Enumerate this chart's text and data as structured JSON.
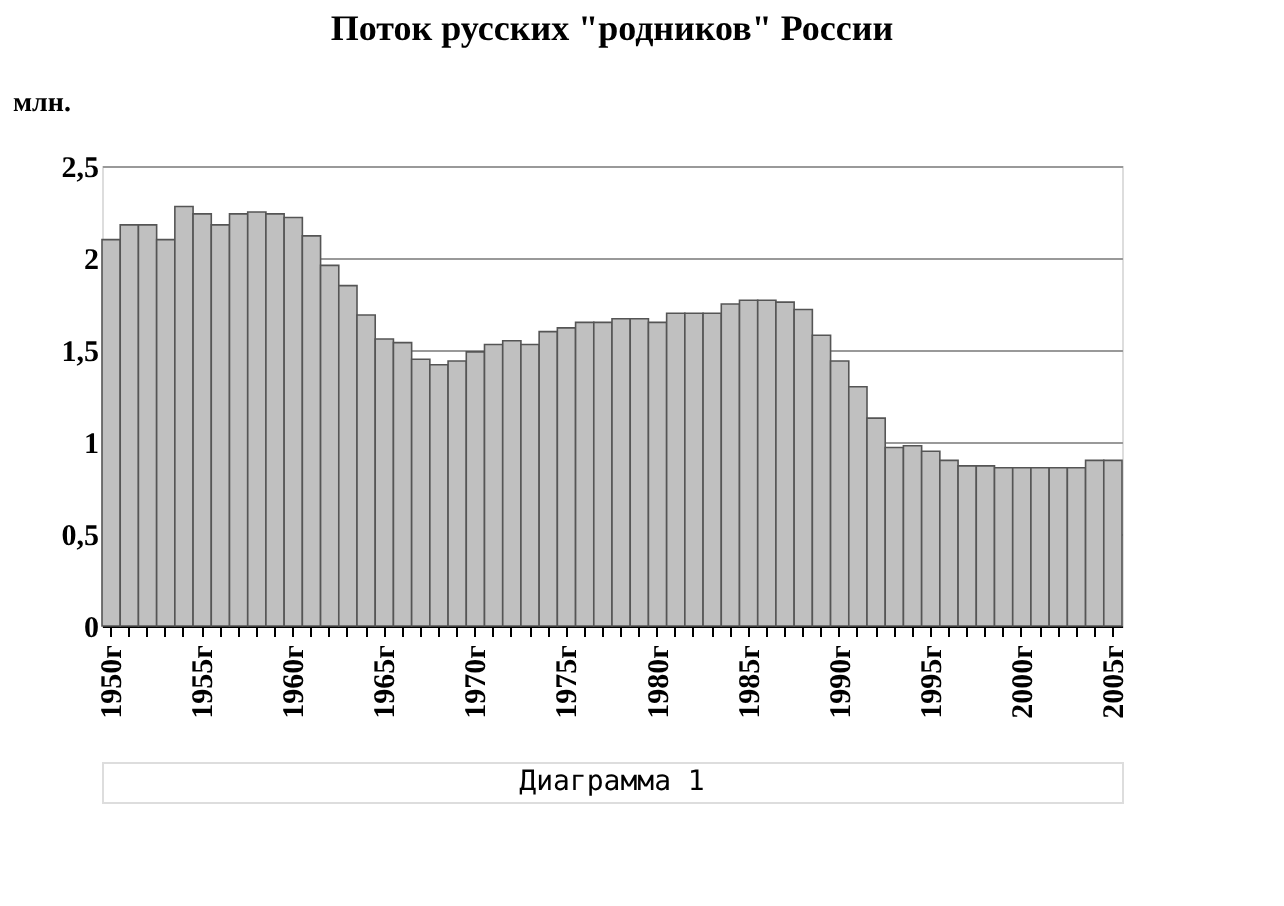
{
  "chart_data": {
    "type": "bar",
    "title": "Поток русских  \"родников\" России",
    "ylabel": "млн.",
    "annotations": [
      "Диаграмма 1"
    ],
    "categories": [
      "1950г",
      null,
      null,
      null,
      null,
      "1955г",
      null,
      null,
      null,
      null,
      "1960г",
      null,
      null,
      null,
      null,
      "1965г",
      null,
      null,
      null,
      null,
      "1970г",
      null,
      null,
      null,
      null,
      "1975г",
      null,
      null,
      null,
      null,
      "1980г",
      null,
      null,
      null,
      null,
      "1985г",
      null,
      null,
      null,
      null,
      "1990г",
      null,
      null,
      null,
      null,
      "1995г",
      null,
      null,
      null,
      null,
      "2000г",
      null,
      null,
      null,
      null,
      "2005г"
    ],
    "values": [
      2.1,
      2.18,
      2.18,
      2.1,
      2.28,
      2.24,
      2.18,
      2.24,
      2.25,
      2.24,
      2.22,
      2.12,
      1.96,
      1.85,
      1.69,
      1.56,
      1.54,
      1.45,
      1.42,
      1.44,
      1.49,
      1.53,
      1.55,
      1.53,
      1.6,
      1.62,
      1.65,
      1.65,
      1.67,
      1.67,
      1.65,
      1.7,
      1.7,
      1.7,
      1.75,
      1.77,
      1.77,
      1.76,
      1.72,
      1.58,
      1.44,
      1.3,
      1.13,
      0.97,
      0.98,
      0.95,
      0.9,
      0.87,
      0.87,
      0.86,
      0.86,
      0.86,
      0.86,
      0.86,
      0.9,
      0.9
    ],
    "color": "#c0c0c0",
    "ylim": [
      0,
      2.5
    ],
    "yticks": [
      {
        "value": 0,
        "label": "0"
      },
      {
        "value": 0.5,
        "label": "0,5"
      },
      {
        "value": 1,
        "label": "1"
      },
      {
        "value": 1.5,
        "label": "1,5"
      },
      {
        "value": 2,
        "label": "2"
      },
      {
        "value": 2.5,
        "label": "2,5"
      }
    ],
    "grid": "y"
  }
}
